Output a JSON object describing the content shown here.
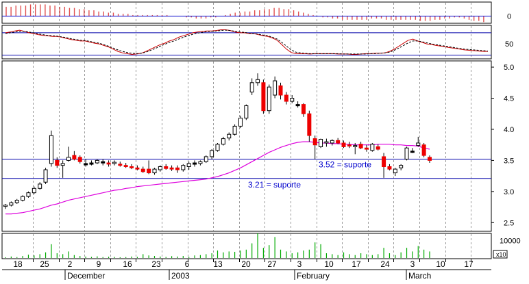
{
  "chart_data": [
    {
      "panel": "histogram-indicator",
      "type": "bar",
      "y_tick_labels": [
        "0"
      ],
      "ylim": [
        -6,
        12
      ],
      "hline": 0,
      "values": [
        8,
        8,
        9,
        9,
        9,
        10,
        10,
        10,
        10,
        9,
        9,
        8,
        8,
        7,
        7,
        6,
        6,
        5,
        5,
        4,
        4,
        3,
        3,
        2,
        2,
        2,
        1,
        1,
        1,
        1,
        1,
        1,
        1,
        1,
        0,
        0,
        0,
        -1,
        -1,
        -2,
        -2,
        -2,
        -1,
        -1,
        0,
        1,
        2,
        3,
        3,
        4,
        4,
        5,
        5,
        6,
        6,
        7,
        7,
        6,
        6,
        5,
        4,
        3,
        2,
        1,
        0,
        -1,
        -1,
        -2,
        -2,
        -3,
        -3,
        -3,
        -3,
        -3,
        -3,
        -2,
        -2,
        -2,
        -3,
        -3,
        -3,
        -3,
        -3,
        -3,
        -3,
        -4,
        -4,
        -4,
        -3,
        -3,
        -2,
        -2,
        -1,
        -1,
        -2,
        -3,
        -4,
        -4,
        -5
      ],
      "colors": {
        "positive": "#e05050",
        "negative": "#e05050",
        "line": "#0000cc"
      }
    },
    {
      "panel": "oscillator",
      "type": "line",
      "y_tick_labels": [
        "50"
      ],
      "ylim": [
        10,
        100
      ],
      "hlines": [
        20,
        80
      ],
      "series": [
        {
          "values": [
            80,
            82,
            85,
            87,
            84,
            80,
            78,
            75,
            73,
            72,
            70,
            70,
            68,
            65,
            62,
            60,
            58,
            58,
            55,
            52,
            50,
            46,
            42,
            36,
            30,
            26,
            24,
            22,
            23,
            25,
            30,
            36,
            42,
            48,
            52,
            58,
            62,
            68,
            72,
            76,
            80,
            82,
            84,
            85,
            85,
            86,
            88,
            88,
            86,
            82,
            80,
            80,
            78,
            78,
            75,
            72,
            70,
            66,
            60,
            48,
            36,
            27,
            24,
            24,
            24,
            23,
            24,
            24,
            24,
            24,
            24,
            23,
            23,
            23,
            22,
            22,
            23,
            24,
            24,
            25,
            25,
            26,
            30,
            36,
            44,
            52,
            60,
            63,
            58,
            54,
            50,
            48,
            46,
            44,
            42,
            40,
            38,
            36,
            34,
            33,
            32,
            31,
            30,
            30
          ],
          "color": "#cc0000",
          "dash": false
        },
        {
          "values": [
            78,
            80,
            82,
            84,
            84,
            82,
            80,
            77,
            75,
            73,
            72,
            71,
            69,
            67,
            64,
            62,
            60,
            59,
            57,
            54,
            52,
            48,
            44,
            39,
            34,
            30,
            27,
            25,
            24,
            25,
            28,
            33,
            38,
            44,
            49,
            54,
            58,
            63,
            68,
            72,
            76,
            79,
            81,
            83,
            84,
            85,
            86,
            87,
            86,
            84,
            82,
            81,
            79,
            78,
            76,
            74,
            72,
            68,
            63,
            54,
            44,
            34,
            28,
            26,
            25,
            24,
            24,
            24,
            24,
            24,
            24,
            24,
            23,
            23,
            23,
            23,
            23,
            23,
            24,
            24,
            25,
            26,
            28,
            33,
            39,
            46,
            53,
            58,
            58,
            56,
            53,
            50,
            48,
            46,
            44,
            42,
            40,
            38,
            36,
            35,
            34,
            33,
            32,
            31
          ],
          "color": "#000000",
          "dash": true
        }
      ]
    },
    {
      "panel": "price",
      "type": "candlestick",
      "y_tick_labels": [
        "5.0",
        "4.5",
        "4.0",
        "3.5",
        "3.0",
        "2.5"
      ],
      "ylim": [
        2.36,
        5.1
      ],
      "ohlc": [
        [
          2.76,
          2.8,
          2.72,
          2.78
        ],
        [
          2.78,
          2.84,
          2.76,
          2.82
        ],
        [
          2.82,
          2.88,
          2.8,
          2.86
        ],
        [
          2.86,
          2.94,
          2.84,
          2.92
        ],
        [
          2.92,
          3.0,
          2.9,
          2.98
        ],
        [
          2.98,
          3.08,
          2.96,
          3.05
        ],
        [
          3.05,
          3.15,
          3.03,
          3.12
        ],
        [
          3.15,
          3.38,
          3.12,
          3.35
        ],
        [
          3.45,
          3.98,
          3.4,
          3.9
        ],
        [
          3.5,
          3.55,
          3.38,
          3.42
        ],
        [
          3.42,
          3.5,
          3.22,
          3.45
        ],
        [
          3.5,
          3.72,
          3.48,
          3.55
        ],
        [
          3.58,
          3.65,
          3.5,
          3.52
        ],
        [
          3.55,
          3.58,
          3.45,
          3.48
        ],
        [
          3.45,
          3.52,
          3.4,
          3.45
        ],
        [
          3.45,
          3.5,
          3.42,
          3.46
        ],
        [
          3.46,
          3.52,
          3.44,
          3.5
        ],
        [
          3.48,
          3.52,
          3.42,
          3.48
        ],
        [
          3.46,
          3.5,
          3.4,
          3.44
        ],
        [
          3.45,
          3.5,
          3.42,
          3.47
        ],
        [
          3.44,
          3.48,
          3.4,
          3.42
        ],
        [
          3.42,
          3.46,
          3.38,
          3.4
        ],
        [
          3.4,
          3.44,
          3.36,
          3.38
        ],
        [
          3.38,
          3.42,
          3.34,
          3.36
        ],
        [
          3.36,
          3.4,
          3.3,
          3.32
        ],
        [
          3.36,
          3.5,
          3.28,
          3.3
        ],
        [
          3.3,
          3.38,
          3.27,
          3.36
        ],
        [
          3.35,
          3.42,
          3.32,
          3.4
        ],
        [
          3.4,
          3.44,
          3.35,
          3.37
        ],
        [
          3.38,
          3.42,
          3.33,
          3.36
        ],
        [
          3.38,
          3.42,
          3.3,
          3.35
        ],
        [
          3.35,
          3.44,
          3.32,
          3.42
        ],
        [
          3.4,
          3.48,
          3.35,
          3.45
        ],
        [
          3.45,
          3.5,
          3.4,
          3.46
        ],
        [
          3.45,
          3.5,
          3.42,
          3.48
        ],
        [
          3.48,
          3.58,
          3.46,
          3.56
        ],
        [
          3.56,
          3.68,
          3.52,
          3.66
        ],
        [
          3.66,
          3.78,
          3.64,
          3.76
        ],
        [
          3.76,
          3.88,
          3.74,
          3.85
        ],
        [
          3.86,
          3.95,
          3.82,
          3.92
        ],
        [
          3.92,
          4.08,
          3.9,
          4.05
        ],
        [
          4.05,
          4.22,
          4.02,
          4.18
        ],
        [
          4.18,
          4.4,
          4.15,
          4.38
        ],
        [
          4.6,
          4.82,
          4.55,
          4.75
        ],
        [
          4.75,
          4.9,
          4.7,
          4.8
        ],
        [
          4.75,
          4.8,
          4.25,
          4.3
        ],
        [
          4.3,
          4.72,
          4.25,
          4.68
        ],
        [
          4.55,
          4.85,
          4.5,
          4.78
        ],
        [
          4.7,
          4.75,
          4.48,
          4.55
        ],
        [
          4.55,
          4.6,
          4.4,
          4.45
        ],
        [
          4.45,
          4.55,
          4.42,
          4.5
        ],
        [
          4.4,
          4.45,
          4.35,
          4.4
        ],
        [
          4.4,
          4.42,
          4.2,
          4.25
        ],
        [
          4.25,
          4.3,
          3.8,
          3.9
        ],
        [
          3.85,
          3.9,
          3.52,
          3.75
        ],
        [
          3.72,
          3.85,
          3.7,
          3.84
        ],
        [
          3.78,
          3.85,
          3.72,
          3.8
        ],
        [
          3.78,
          3.84,
          3.74,
          3.82
        ],
        [
          3.82,
          3.86,
          3.76,
          3.78
        ],
        [
          3.78,
          3.82,
          3.7,
          3.72
        ],
        [
          3.75,
          3.8,
          3.7,
          3.73
        ],
        [
          3.72,
          3.78,
          3.6,
          3.74
        ],
        [
          3.76,
          3.8,
          3.68,
          3.7
        ],
        [
          3.7,
          3.75,
          3.64,
          3.68
        ],
        [
          3.66,
          3.78,
          3.64,
          3.76
        ],
        [
          3.72,
          3.76,
          3.66,
          3.68
        ],
        [
          3.56,
          3.62,
          3.22,
          3.4
        ],
        [
          3.4,
          3.44,
          3.34,
          3.36
        ],
        [
          3.3,
          3.38,
          3.25,
          3.36
        ],
        [
          3.38,
          3.44,
          3.34,
          3.42
        ],
        [
          3.52,
          3.72,
          3.5,
          3.7
        ],
        [
          3.65,
          3.7,
          3.62,
          3.64
        ],
        [
          3.74,
          3.88,
          3.72,
          3.78
        ],
        [
          3.75,
          3.78,
          3.55,
          3.58
        ],
        [
          3.55,
          3.58,
          3.46,
          3.5
        ]
      ],
      "moving_average": [
        2.64,
        2.64,
        2.65,
        2.66,
        2.68,
        2.7,
        2.72,
        2.75,
        2.78,
        2.8,
        2.83,
        2.86,
        2.88,
        2.9,
        2.92,
        2.94,
        2.96,
        2.98,
        3.0,
        3.02,
        3.03,
        3.05,
        3.06,
        3.08,
        3.09,
        3.1,
        3.11,
        3.12,
        3.13,
        3.14,
        3.15,
        3.16,
        3.17,
        3.18,
        3.19,
        3.2,
        3.22,
        3.24,
        3.27,
        3.3,
        3.34,
        3.38,
        3.43,
        3.48,
        3.53,
        3.58,
        3.63,
        3.67,
        3.71,
        3.74,
        3.77,
        3.79,
        3.8,
        3.8,
        3.79,
        3.78,
        3.78,
        3.77,
        3.77,
        3.76,
        3.76,
        3.75,
        3.75,
        3.75,
        3.75,
        3.76,
        3.76,
        3.76,
        3.75,
        3.75,
        3.74,
        3.74,
        3.73,
        3.7,
        3.68
      ],
      "hlines": [
        {
          "value": 3.52,
          "label": "3.52 = suporte"
        },
        {
          "value": 3.21,
          "label": "3.21 = suporte"
        }
      ],
      "colors": {
        "up": "#ffffff",
        "down": "#ee0000",
        "flat": "#000000",
        "ma": "#dd00dd",
        "support": "#0000aa",
        "label": "#0000cc"
      }
    },
    {
      "panel": "volume",
      "type": "bar",
      "y_tick_labels": [
        "10000"
      ],
      "y_multiplier_label": "x10",
      "ylim": [
        0,
        14000
      ],
      "values": [
        800,
        1200,
        900,
        1500,
        2200,
        1800,
        2500,
        3500,
        8000,
        3000,
        2500,
        4000,
        2000,
        1500,
        1200,
        1000,
        1300,
        900,
        1100,
        1000,
        800,
        900,
        1200,
        1000,
        2500,
        1800,
        1500,
        1200,
        1000,
        1400,
        1200,
        1500,
        1000,
        1800,
        2000,
        2500,
        3000,
        4500,
        3500,
        4000,
        3800,
        4500,
        5000,
        8500,
        14000,
        6000,
        7500,
        12000,
        5000,
        4000,
        3000,
        3500,
        4500,
        5000,
        9000,
        8000,
        3000,
        2500,
        2000,
        3500,
        2500,
        2000,
        3000,
        2500,
        2000,
        2500,
        6000,
        3000,
        2000,
        3500,
        6000,
        4000,
        7000,
        5000,
        4000
      ],
      "color": "#00aa00"
    }
  ],
  "x_axis": {
    "day_labels": [
      "18",
      "25",
      "2",
      "9",
      "16",
      "23",
      "6",
      "13",
      "20",
      "27",
      "3",
      "10",
      "17",
      "24",
      "3",
      "10",
      "17"
    ],
    "month_labels": [
      "December",
      "2003",
      "February",
      "March"
    ]
  }
}
